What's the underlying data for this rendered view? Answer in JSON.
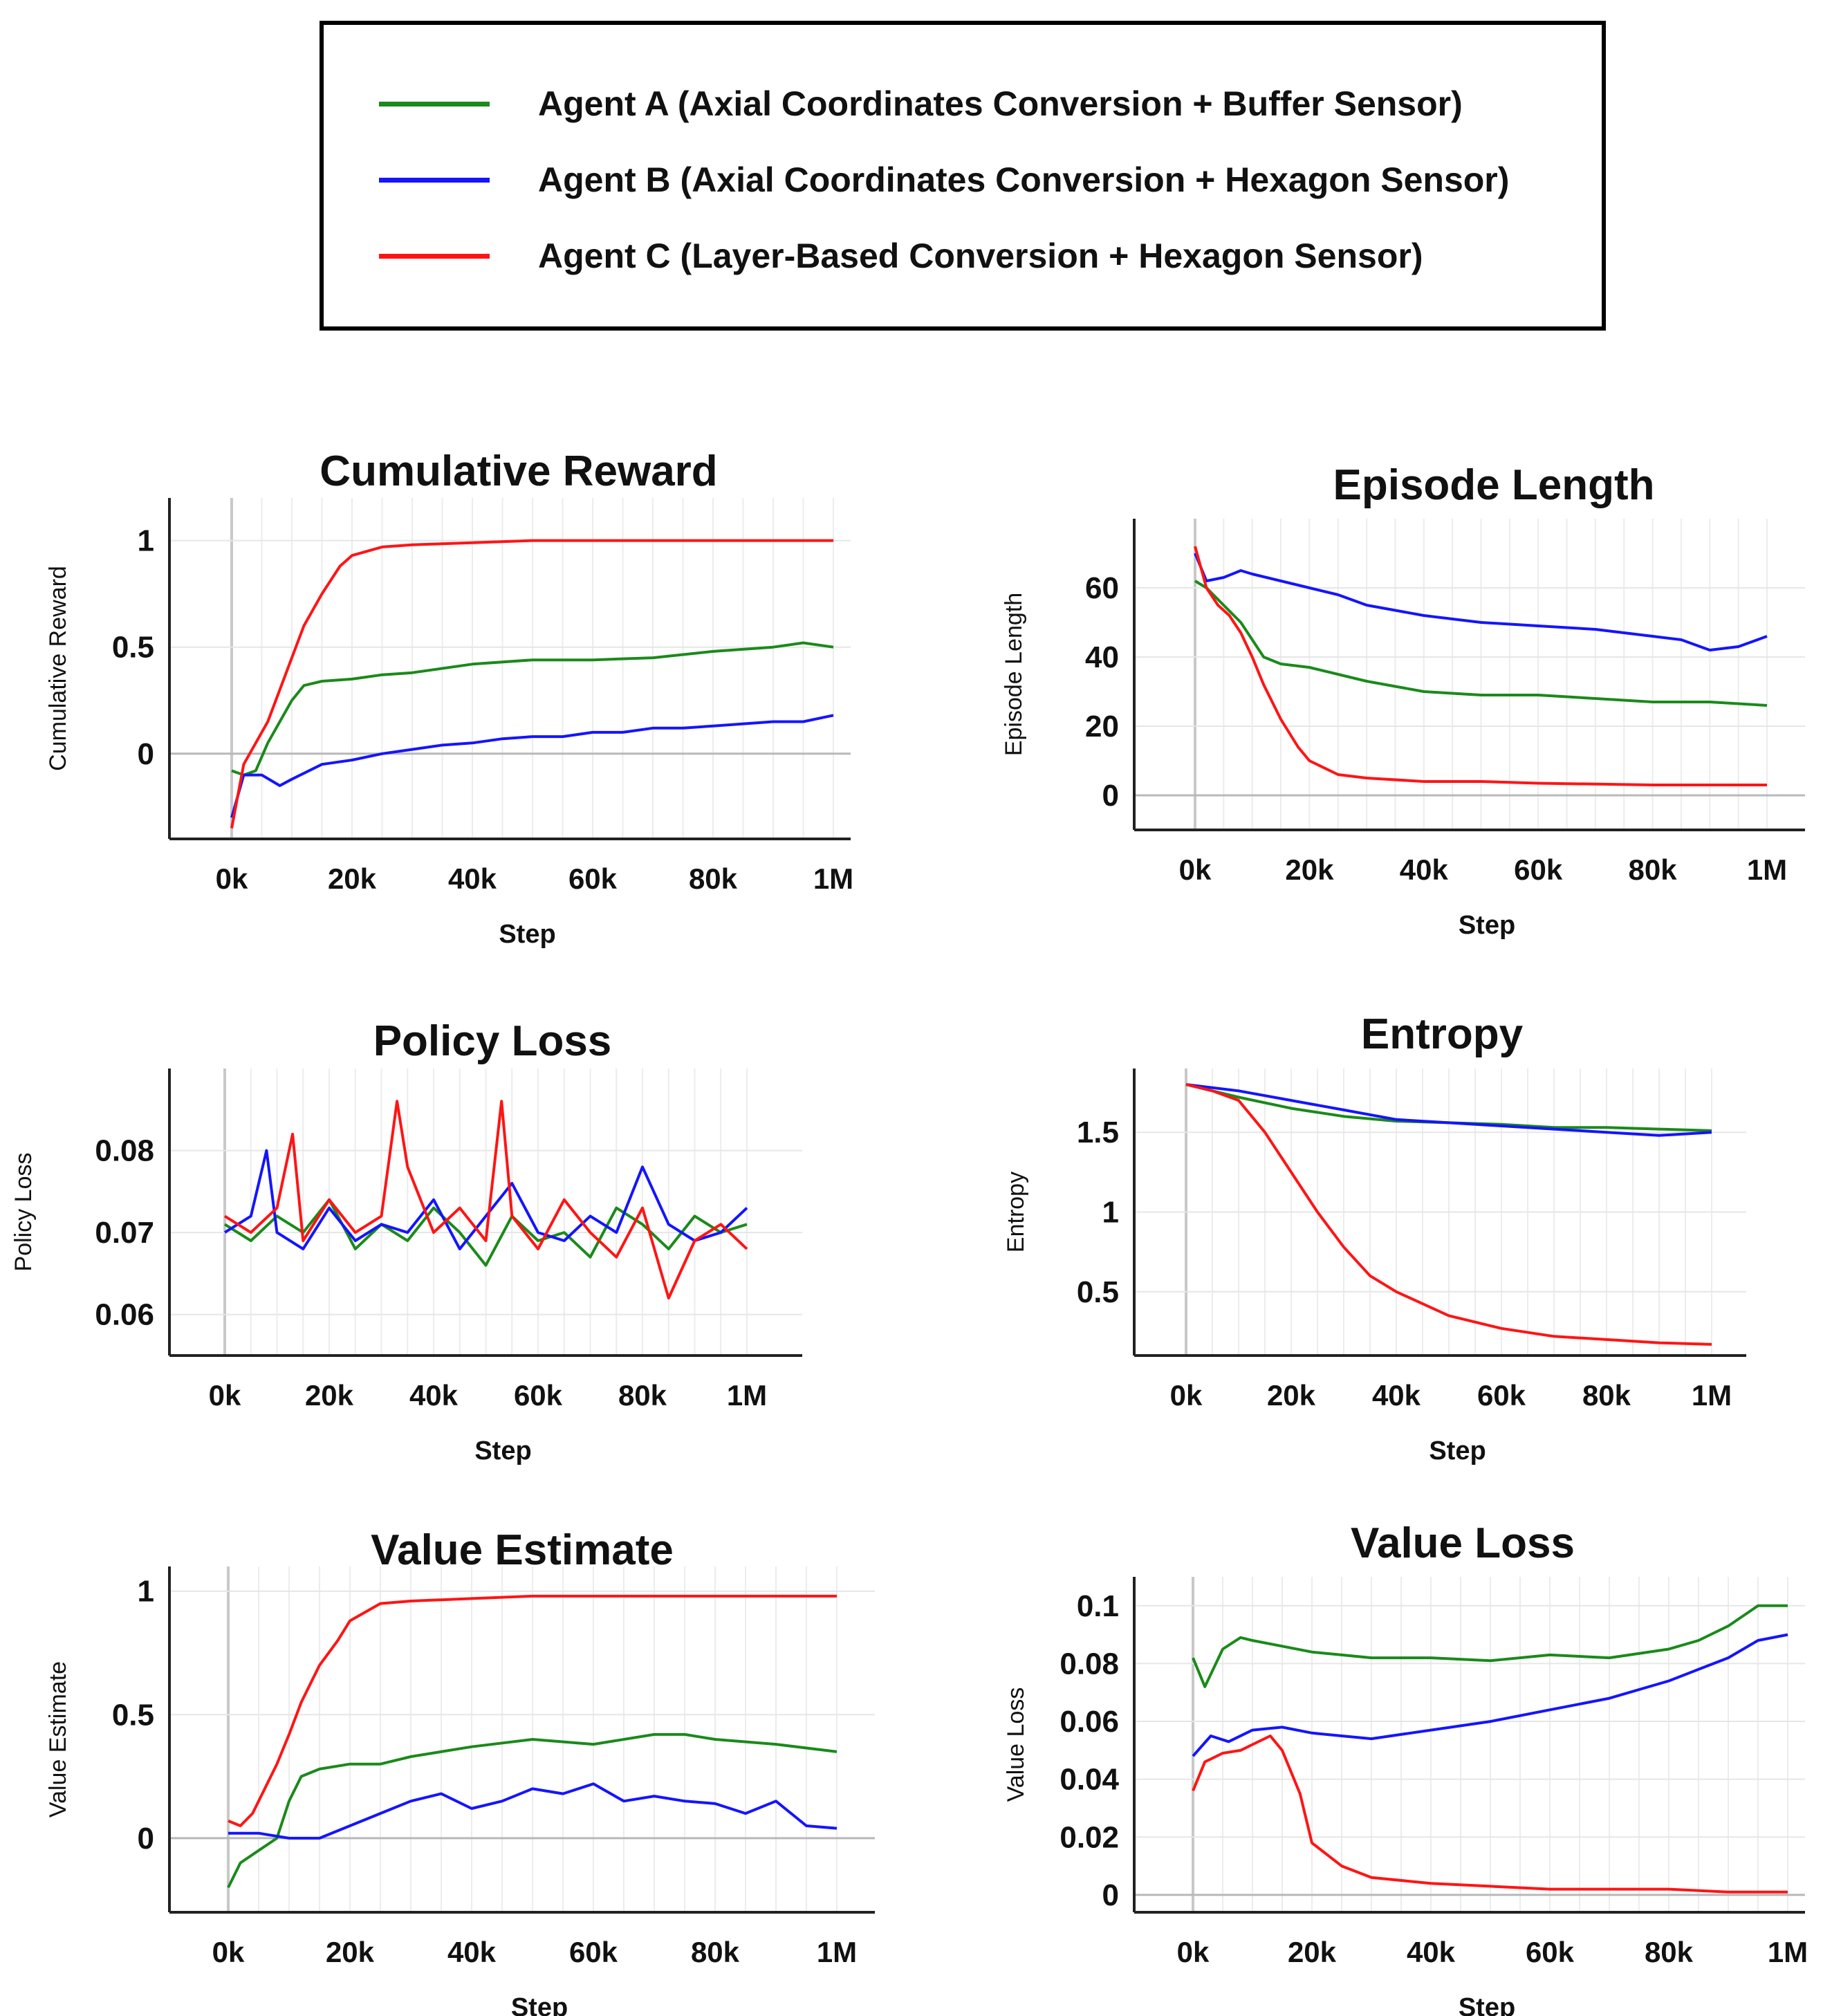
{
  "legend": {
    "items": [
      {
        "label": "Agent A (Axial Coordinates Conversion + Buffer Sensor)",
        "color": "#1a8a1a"
      },
      {
        "label": "Agent B (Axial Coordinates Conversion + Hexagon Sensor)",
        "color": "#1414ff"
      },
      {
        "label": "Agent C (Layer-Based Conversion + Hexagon Sensor)",
        "color": "#ff1414"
      }
    ]
  },
  "chart_data": [
    {
      "type": "line",
      "title": "Cumulative Reward",
      "xlabel": "Step",
      "ylabel": "Cumulative Reward",
      "x_tick_labels": [
        "0k",
        "20k",
        "40k",
        "60k",
        "80k",
        "1M"
      ],
      "xlim": [
        0,
        100
      ],
      "ylim": [
        -0.4,
        1.2
      ],
      "y_ticks": [
        0,
        0.5,
        1
      ],
      "y_tick_labels": [
        "0",
        "0.5",
        "1"
      ],
      "series": [
        {
          "name": "Agent A",
          "x": [
            0,
            2,
            4,
            6,
            8,
            10,
            12,
            15,
            20,
            25,
            30,
            40,
            50,
            60,
            70,
            80,
            90,
            95,
            100
          ],
          "values": [
            -0.08,
            -0.1,
            -0.08,
            0.05,
            0.15,
            0.25,
            0.32,
            0.34,
            0.35,
            0.37,
            0.38,
            0.42,
            0.44,
            0.44,
            0.45,
            0.48,
            0.5,
            0.52,
            0.5
          ]
        },
        {
          "name": "Agent B",
          "x": [
            0,
            2,
            5,
            8,
            10,
            15,
            20,
            25,
            30,
            35,
            40,
            45,
            50,
            55,
            60,
            65,
            70,
            75,
            80,
            85,
            90,
            95,
            100
          ],
          "values": [
            -0.3,
            -0.1,
            -0.1,
            -0.15,
            -0.12,
            -0.05,
            -0.03,
            0.0,
            0.02,
            0.04,
            0.05,
            0.07,
            0.08,
            0.08,
            0.1,
            0.1,
            0.12,
            0.12,
            0.13,
            0.14,
            0.15,
            0.15,
            0.18
          ]
        },
        {
          "name": "Agent C",
          "x": [
            0,
            1,
            2,
            4,
            6,
            8,
            10,
            12,
            15,
            18,
            20,
            25,
            30,
            40,
            50,
            60,
            80,
            100
          ],
          "values": [
            -0.35,
            -0.2,
            -0.05,
            0.05,
            0.15,
            0.3,
            0.45,
            0.6,
            0.75,
            0.88,
            0.93,
            0.97,
            0.98,
            0.99,
            1.0,
            1.0,
            1.0,
            1.0
          ]
        }
      ]
    },
    {
      "type": "line",
      "title": "Episode Length",
      "xlabel": "Step",
      "ylabel": "Episode Length",
      "x_tick_labels": [
        "0k",
        "20k",
        "40k",
        "60k",
        "80k",
        "1M"
      ],
      "xlim": [
        0,
        100
      ],
      "ylim": [
        -10,
        80
      ],
      "y_ticks": [
        0,
        20,
        40,
        60
      ],
      "y_tick_labels": [
        "0",
        "20",
        "40",
        "60"
      ],
      "series": [
        {
          "name": "Agent A",
          "x": [
            0,
            2,
            5,
            8,
            10,
            12,
            15,
            20,
            25,
            30,
            40,
            50,
            60,
            70,
            80,
            90,
            100
          ],
          "values": [
            62,
            60,
            55,
            50,
            45,
            40,
            38,
            37,
            35,
            33,
            30,
            29,
            29,
            28,
            27,
            27,
            26
          ]
        },
        {
          "name": "Agent B",
          "x": [
            0,
            2,
            5,
            8,
            10,
            15,
            20,
            25,
            30,
            40,
            50,
            60,
            70,
            80,
            85,
            90,
            95,
            100
          ],
          "values": [
            70,
            62,
            63,
            65,
            64,
            62,
            60,
            58,
            55,
            52,
            50,
            49,
            48,
            46,
            45,
            42,
            43,
            46
          ]
        },
        {
          "name": "Agent C",
          "x": [
            0,
            2,
            4,
            6,
            8,
            10,
            12,
            15,
            18,
            20,
            25,
            30,
            40,
            50,
            60,
            80,
            100
          ],
          "values": [
            72,
            60,
            55,
            52,
            47,
            40,
            32,
            22,
            14,
            10,
            6,
            5,
            4,
            4,
            3.5,
            3,
            3
          ]
        }
      ]
    },
    {
      "type": "line",
      "title": "Policy Loss",
      "xlabel": "Step",
      "ylabel": "Policy Loss",
      "x_tick_labels": [
        "0k",
        "20k",
        "40k",
        "60k",
        "80k",
        "1M"
      ],
      "xlim": [
        0,
        100
      ],
      "ylim": [
        0.055,
        0.09
      ],
      "y_ticks": [
        0.06,
        0.07,
        0.08
      ],
      "y_tick_labels": [
        "0.06",
        "0.07",
        "0.08"
      ],
      "series": [
        {
          "name": "Agent A",
          "x": [
            0,
            5,
            10,
            15,
            20,
            25,
            30,
            35,
            40,
            45,
            50,
            55,
            60,
            65,
            70,
            75,
            80,
            85,
            90,
            95,
            100
          ],
          "values": [
            0.071,
            0.069,
            0.072,
            0.07,
            0.074,
            0.068,
            0.071,
            0.069,
            0.073,
            0.07,
            0.066,
            0.072,
            0.069,
            0.07,
            0.067,
            0.073,
            0.071,
            0.068,
            0.072,
            0.07,
            0.071
          ]
        },
        {
          "name": "Agent B",
          "x": [
            0,
            5,
            8,
            10,
            15,
            20,
            25,
            30,
            35,
            40,
            45,
            50,
            55,
            60,
            65,
            70,
            75,
            80,
            85,
            90,
            95,
            100
          ],
          "values": [
            0.07,
            0.072,
            0.08,
            0.07,
            0.068,
            0.073,
            0.069,
            0.071,
            0.07,
            0.074,
            0.068,
            0.072,
            0.076,
            0.07,
            0.069,
            0.072,
            0.07,
            0.078,
            0.071,
            0.069,
            0.07,
            0.073
          ]
        },
        {
          "name": "Agent C",
          "x": [
            0,
            5,
            10,
            13,
            15,
            20,
            25,
            30,
            33,
            35,
            40,
            45,
            50,
            53,
            55,
            60,
            65,
            70,
            75,
            80,
            85,
            90,
            95,
            100
          ],
          "values": [
            0.072,
            0.07,
            0.073,
            0.082,
            0.069,
            0.074,
            0.07,
            0.072,
            0.086,
            0.078,
            0.07,
            0.073,
            0.069,
            0.086,
            0.072,
            0.068,
            0.074,
            0.07,
            0.067,
            0.073,
            0.062,
            0.069,
            0.071,
            0.068
          ]
        }
      ]
    },
    {
      "type": "line",
      "title": "Entropy",
      "xlabel": "Step",
      "ylabel": "Entropy",
      "x_tick_labels": [
        "0k",
        "20k",
        "40k",
        "60k",
        "80k",
        "1M"
      ],
      "xlim": [
        0,
        100
      ],
      "ylim": [
        0.1,
        1.9
      ],
      "y_ticks": [
        0.5,
        1,
        1.5
      ],
      "y_tick_labels": [
        "0.5",
        "1",
        "1.5"
      ],
      "series": [
        {
          "name": "Agent A",
          "x": [
            0,
            10,
            20,
            30,
            40,
            50,
            60,
            70,
            80,
            90,
            100
          ],
          "values": [
            1.8,
            1.72,
            1.65,
            1.6,
            1.57,
            1.56,
            1.55,
            1.53,
            1.53,
            1.52,
            1.51
          ]
        },
        {
          "name": "Agent B",
          "x": [
            0,
            10,
            20,
            30,
            40,
            50,
            60,
            70,
            80,
            90,
            100
          ],
          "values": [
            1.8,
            1.76,
            1.7,
            1.64,
            1.58,
            1.56,
            1.54,
            1.52,
            1.5,
            1.48,
            1.5
          ]
        },
        {
          "name": "Agent C",
          "x": [
            0,
            5,
            10,
            15,
            20,
            25,
            30,
            35,
            40,
            50,
            60,
            70,
            80,
            90,
            100
          ],
          "values": [
            1.8,
            1.76,
            1.7,
            1.5,
            1.25,
            1.0,
            0.78,
            0.6,
            0.5,
            0.35,
            0.27,
            0.22,
            0.2,
            0.18,
            0.17
          ]
        }
      ]
    },
    {
      "type": "line",
      "title": "Value Estimate",
      "xlabel": "Step",
      "ylabel": "Value Estimate",
      "x_tick_labels": [
        "0k",
        "20k",
        "40k",
        "60k",
        "80k",
        "1M"
      ],
      "xlim": [
        0,
        100
      ],
      "ylim": [
        -0.3,
        1.1
      ],
      "y_ticks": [
        0,
        0.5,
        1
      ],
      "y_tick_labels": [
        "0",
        "0.5",
        "1"
      ],
      "series": [
        {
          "name": "Agent A",
          "x": [
            0,
            2,
            5,
            8,
            10,
            12,
            15,
            20,
            25,
            30,
            40,
            50,
            60,
            70,
            75,
            80,
            90,
            100
          ],
          "values": [
            -0.2,
            -0.1,
            -0.05,
            0.0,
            0.15,
            0.25,
            0.28,
            0.3,
            0.3,
            0.33,
            0.37,
            0.4,
            0.38,
            0.42,
            0.42,
            0.4,
            0.38,
            0.35
          ]
        },
        {
          "name": "Agent B",
          "x": [
            0,
            5,
            10,
            15,
            20,
            25,
            30,
            35,
            40,
            45,
            50,
            55,
            60,
            65,
            70,
            75,
            80,
            85,
            90,
            95,
            100
          ],
          "values": [
            0.02,
            0.02,
            0.0,
            0.0,
            0.05,
            0.1,
            0.15,
            0.18,
            0.12,
            0.15,
            0.2,
            0.18,
            0.22,
            0.15,
            0.17,
            0.15,
            0.14,
            0.1,
            0.15,
            0.05,
            0.04
          ]
        },
        {
          "name": "Agent C",
          "x": [
            0,
            2,
            4,
            6,
            8,
            10,
            12,
            15,
            18,
            20,
            25,
            30,
            40,
            50,
            60,
            80,
            100
          ],
          "values": [
            0.07,
            0.05,
            0.1,
            0.2,
            0.3,
            0.42,
            0.55,
            0.7,
            0.8,
            0.88,
            0.95,
            0.96,
            0.97,
            0.98,
            0.98,
            0.98,
            0.98
          ]
        }
      ]
    },
    {
      "type": "line",
      "title": "Value Loss",
      "xlabel": "Step",
      "ylabel": "Value Loss",
      "x_tick_labels": [
        "0k",
        "20k",
        "40k",
        "60k",
        "80k",
        "1M"
      ],
      "xlim": [
        0,
        100
      ],
      "ylim": [
        -0.006,
        0.11
      ],
      "y_ticks": [
        0,
        0.02,
        0.04,
        0.06,
        0.08,
        0.1
      ],
      "y_tick_labels": [
        "0",
        "0.02",
        "0.04",
        "0.06",
        "0.08",
        "0.1"
      ],
      "series": [
        {
          "name": "Agent A",
          "x": [
            0,
            2,
            5,
            8,
            10,
            15,
            20,
            25,
            30,
            40,
            50,
            60,
            70,
            80,
            85,
            90,
            95,
            100
          ],
          "values": [
            0.082,
            0.072,
            0.085,
            0.089,
            0.088,
            0.086,
            0.084,
            0.083,
            0.082,
            0.082,
            0.081,
            0.083,
            0.082,
            0.085,
            0.088,
            0.093,
            0.1,
            0.1
          ]
        },
        {
          "name": "Agent B",
          "x": [
            0,
            3,
            6,
            10,
            15,
            20,
            25,
            30,
            40,
            50,
            60,
            70,
            80,
            85,
            90,
            95,
            100
          ],
          "values": [
            0.048,
            0.055,
            0.053,
            0.057,
            0.058,
            0.056,
            0.055,
            0.054,
            0.057,
            0.06,
            0.064,
            0.068,
            0.074,
            0.078,
            0.082,
            0.088,
            0.09
          ]
        },
        {
          "name": "Agent C",
          "x": [
            0,
            2,
            5,
            8,
            10,
            13,
            15,
            18,
            20,
            25,
            30,
            40,
            50,
            60,
            70,
            80,
            90,
            100
          ],
          "values": [
            0.036,
            0.046,
            0.049,
            0.05,
            0.052,
            0.055,
            0.05,
            0.035,
            0.018,
            0.01,
            0.006,
            0.004,
            0.003,
            0.002,
            0.002,
            0.002,
            0.001,
            0.001
          ]
        }
      ]
    }
  ]
}
